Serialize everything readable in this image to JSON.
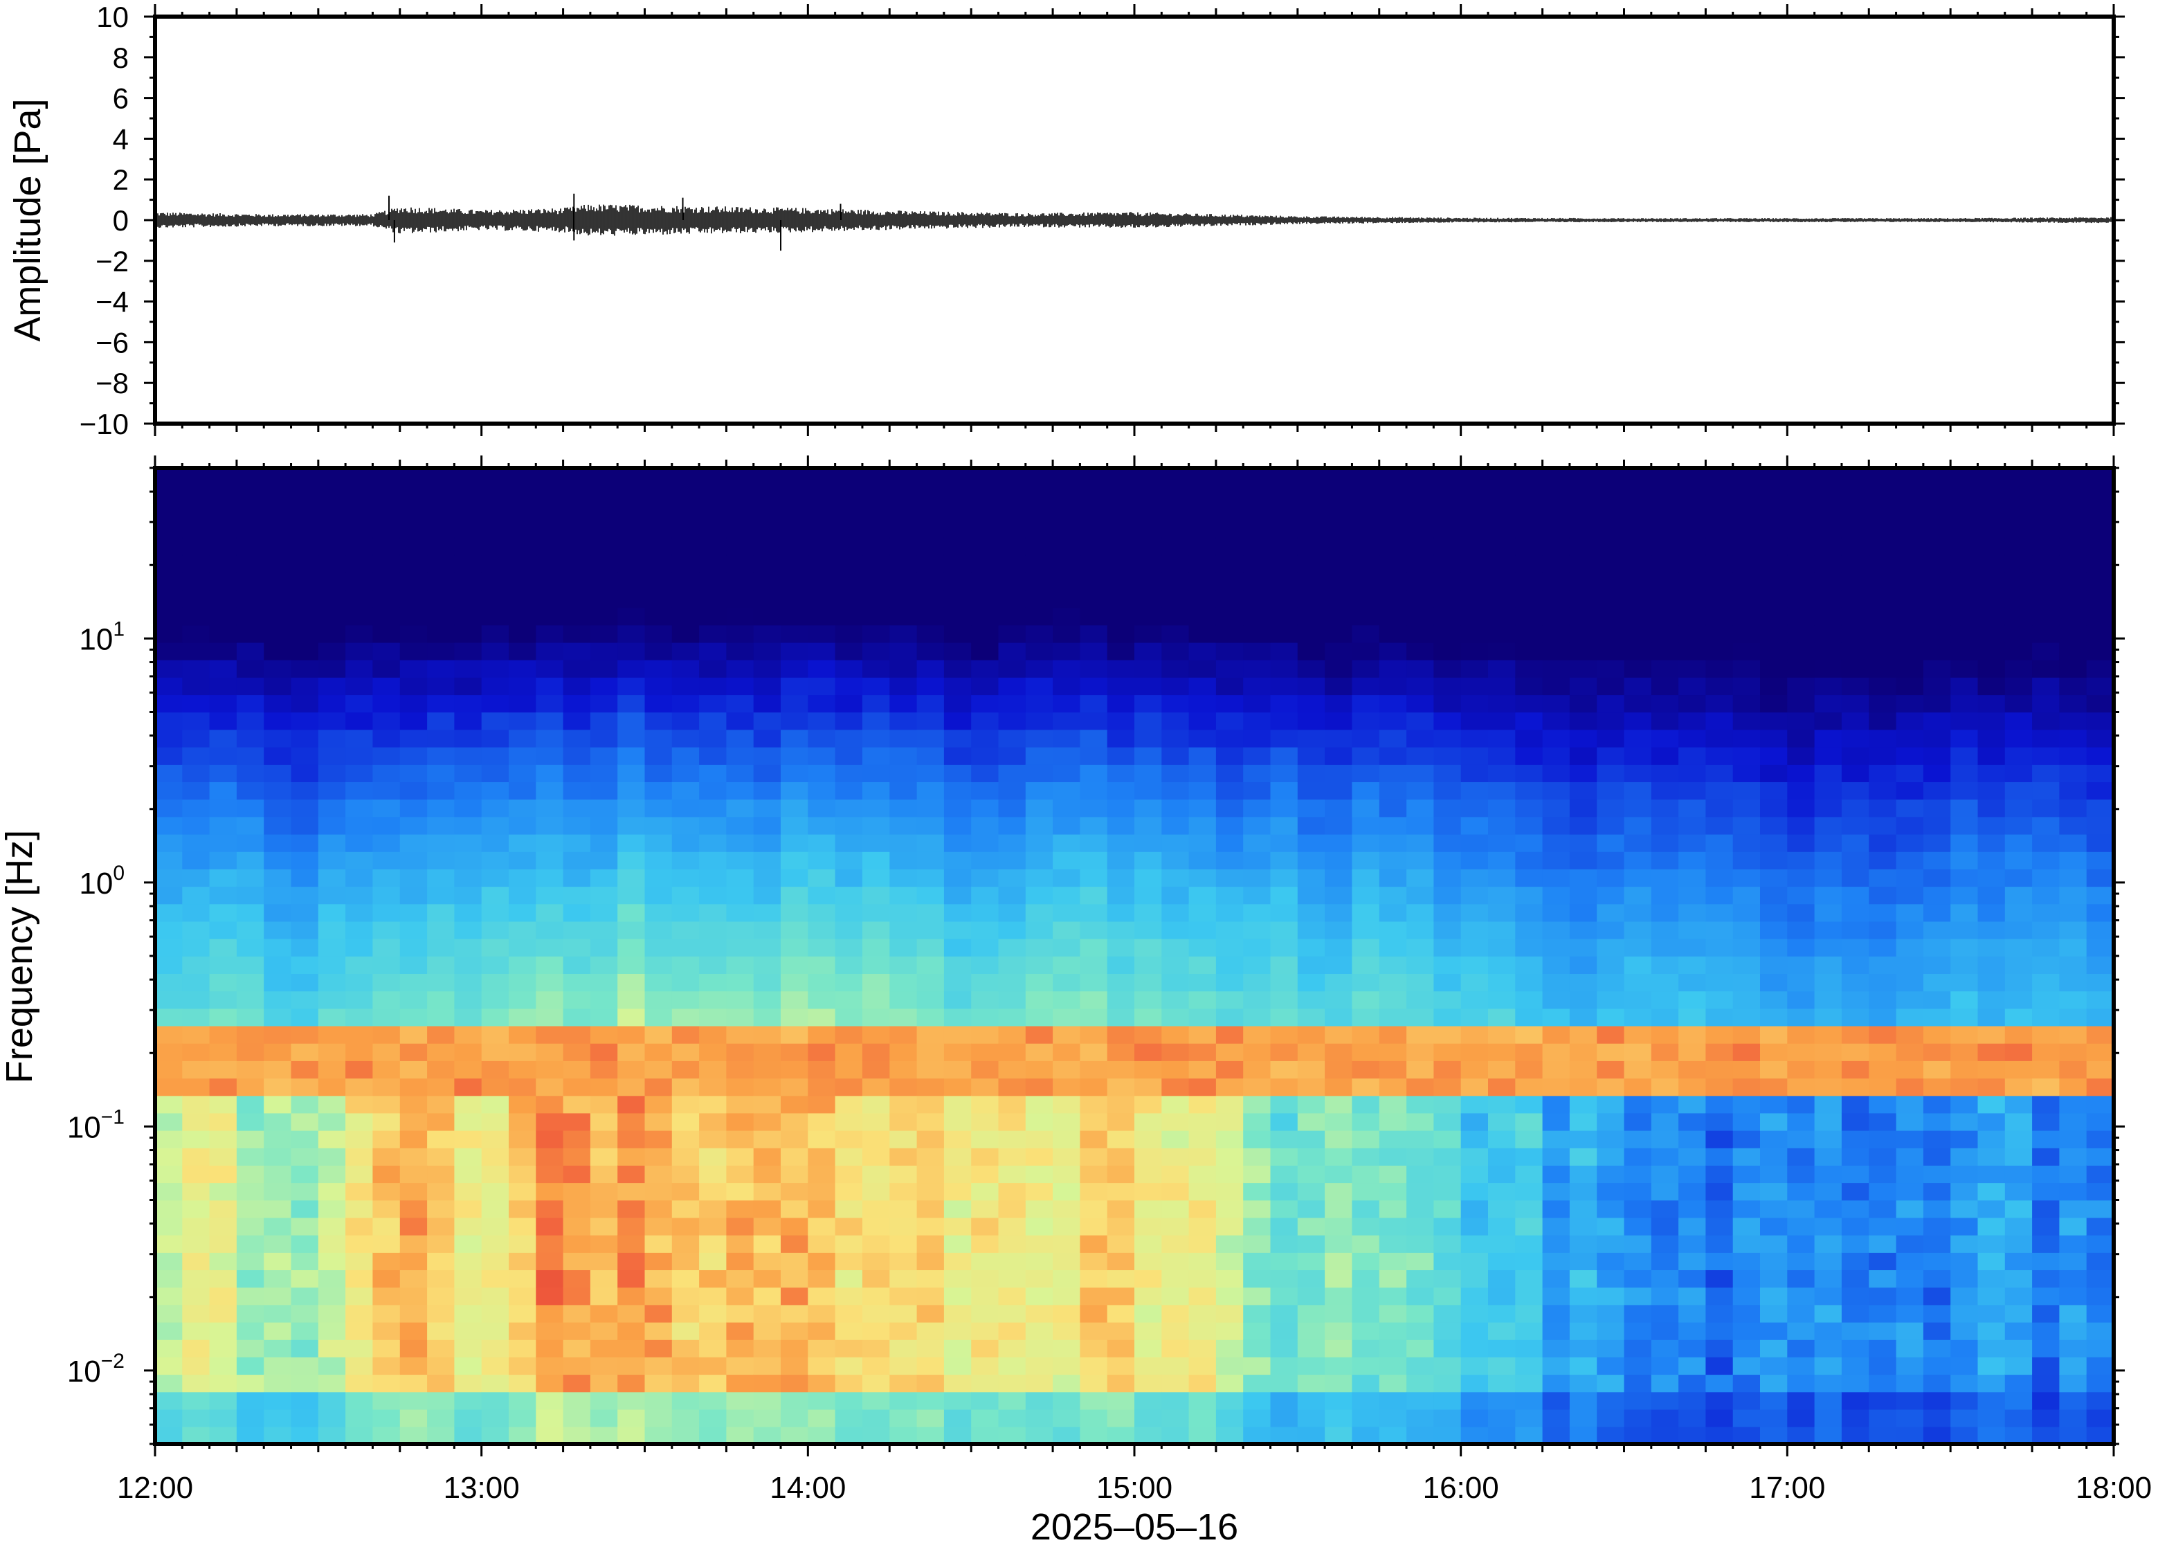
{
  "chart_data": [
    {
      "type": "line",
      "panel": "waveform",
      "ylabel": "Amplitude [Pa]",
      "ylim": [
        -10,
        10
      ],
      "y_ticks": [
        10,
        8,
        6,
        4,
        2,
        0,
        -2,
        -4,
        -6,
        -8,
        -10
      ],
      "y_tick_labels": [
        "10",
        "8",
        "6",
        "4",
        "2",
        "0",
        "−2",
        "−4",
        "−6",
        "−8",
        "−10"
      ],
      "x_ticks": [
        "12:00",
        "13:00",
        "14:00",
        "15:00",
        "16:00",
        "17:00",
        "18:00"
      ],
      "line_color": "#000000",
      "envelope": {
        "times": [
          "12:00",
          "12:20",
          "12:40",
          "12:45",
          "13:00",
          "13:15",
          "13:20",
          "13:40",
          "14:00",
          "14:20",
          "14:40",
          "15:00",
          "15:15",
          "15:30",
          "16:00",
          "16:30",
          "17:00",
          "17:30",
          "18:00"
        ],
        "amplitude_pa": [
          0.4,
          0.3,
          0.3,
          0.7,
          0.5,
          0.6,
          0.8,
          0.7,
          0.6,
          0.45,
          0.35,
          0.4,
          0.3,
          0.2,
          0.12,
          0.1,
          0.1,
          0.1,
          0.15
        ]
      },
      "spikes": [
        {
          "time": "12:43",
          "value": 1.2
        },
        {
          "time": "12:44",
          "value": -1.1
        },
        {
          "time": "13:17",
          "value": 1.3
        },
        {
          "time": "13:17",
          "value": -1.0
        },
        {
          "time": "13:37",
          "value": 1.1
        },
        {
          "time": "13:55",
          "value": -1.5
        },
        {
          "time": "14:06",
          "value": 0.8
        }
      ]
    },
    {
      "type": "heatmap",
      "panel": "spectrogram",
      "ylabel": "Frequency [Hz]",
      "xlabel": "2025–05–16",
      "y_scale": "log",
      "ylim_hz": [
        0.005,
        50
      ],
      "y_ticks": [
        {
          "value": 10,
          "base": "10",
          "exp": "1"
        },
        {
          "value": 1,
          "base": "10",
          "exp": "0"
        },
        {
          "value": 0.1,
          "base": "10",
          "exp": "−1"
        },
        {
          "value": 0.01,
          "base": "10",
          "exp": "−2"
        }
      ],
      "x_ticks": [
        "12:00",
        "13:00",
        "14:00",
        "15:00",
        "16:00",
        "17:00",
        "18:00"
      ],
      "colormap": "jet",
      "band_hz": [
        0.15,
        0.22
      ],
      "activity": {
        "times": [
          "12:00",
          "12:30",
          "12:45",
          "13:00",
          "13:15",
          "13:30",
          "14:00",
          "14:30",
          "15:00",
          "15:15",
          "15:30",
          "16:00",
          "16:30",
          "17:00",
          "17:30",
          "18:00"
        ],
        "low_freq_level": [
          0.72,
          0.6,
          0.82,
          0.75,
          0.85,
          0.82,
          0.8,
          0.72,
          0.78,
          0.7,
          0.55,
          0.5,
          0.3,
          0.28,
          0.3,
          0.33
        ],
        "high_freq_level": [
          0.42,
          0.38,
          0.47,
          0.45,
          0.55,
          0.58,
          0.55,
          0.48,
          0.52,
          0.48,
          0.42,
          0.38,
          0.24,
          0.2,
          0.24,
          0.28
        ]
      }
    }
  ]
}
